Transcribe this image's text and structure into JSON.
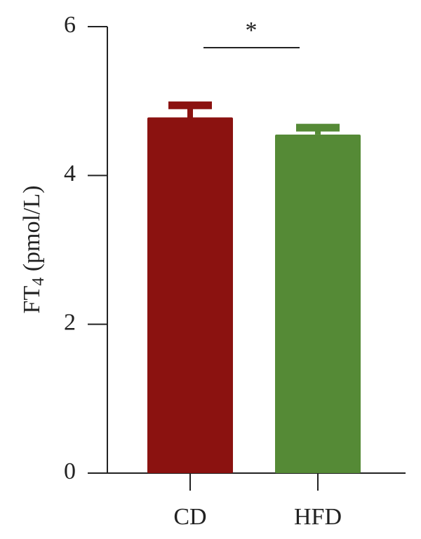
{
  "chart_data": {
    "type": "bar",
    "ylabel": [
      "FT",
      "4",
      " (pmol/L)"
    ],
    "categories": [
      "CD",
      "HFD"
    ],
    "values": [
      4.78,
      4.55
    ],
    "errors": [
      0.21,
      0.14
    ],
    "colors": [
      "#8b1210",
      "#558a36"
    ],
    "ylim": [
      0,
      6
    ],
    "yticks": [
      0,
      2,
      4,
      6
    ],
    "annotation": {
      "text": "*",
      "between": [
        0,
        1
      ]
    }
  }
}
